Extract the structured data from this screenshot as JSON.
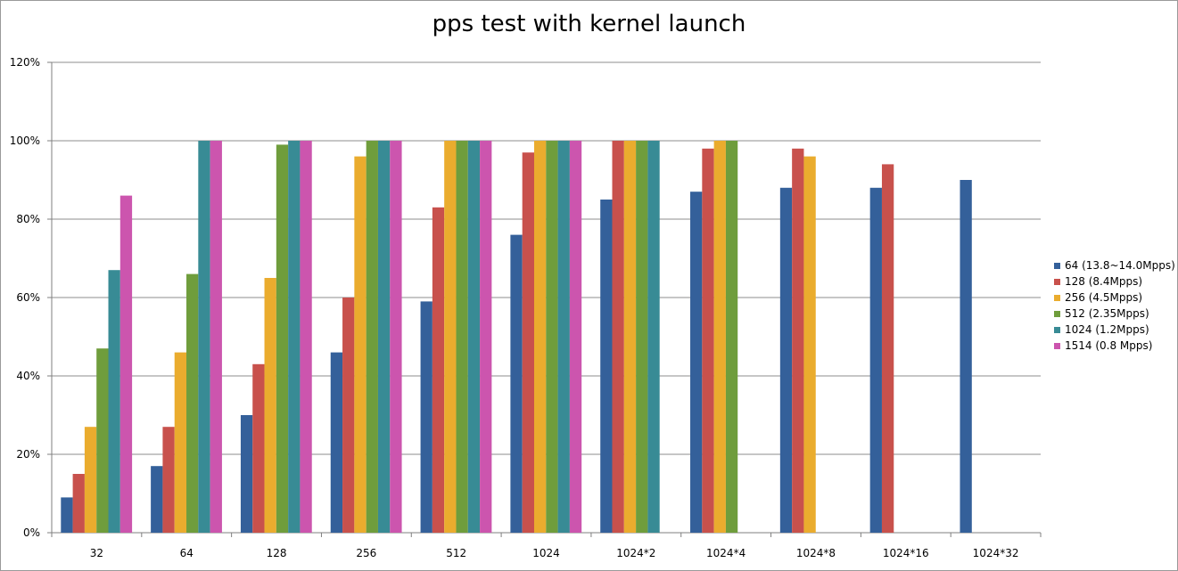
{
  "chart_data": {
    "type": "bar",
    "title": "pps test with kernel launch",
    "xlabel": "",
    "ylabel": "",
    "ylim": [
      0,
      1.2
    ],
    "yticks": [
      "0%",
      "20%",
      "40%",
      "60%",
      "80%",
      "100%",
      "120%"
    ],
    "grid": true,
    "legend_position": "right",
    "categories": [
      "32",
      "64",
      "128",
      "256",
      "512",
      "1024",
      "1024*2",
      "1024*4",
      "1024*8",
      "1024*16",
      "1024*32"
    ],
    "series": [
      {
        "name": "64 (13.8~14.0Mpps)",
        "color": "#34609a",
        "values": [
          0.09,
          0.17,
          0.3,
          0.46,
          0.59,
          0.76,
          0.85,
          0.87,
          0.88,
          0.88,
          0.9
        ]
      },
      {
        "name": "128 (8.4Mpps)",
        "color": "#c8514c",
        "values": [
          0.15,
          0.27,
          0.43,
          0.6,
          0.83,
          0.97,
          1.0,
          0.98,
          0.98,
          0.94,
          null
        ]
      },
      {
        "name": "256 (4.5Mpps)",
        "color": "#eaac2e",
        "values": [
          0.27,
          0.46,
          0.65,
          0.96,
          1.0,
          1.0,
          1.0,
          1.0,
          0.96,
          null,
          null
        ]
      },
      {
        "name": "512 (2.35Mpps)",
        "color": "#6f9d3c",
        "values": [
          0.47,
          0.66,
          0.99,
          1.0,
          1.0,
          1.0,
          1.0,
          1.0,
          null,
          null,
          null
        ]
      },
      {
        "name": "1024 (1.2Mpps)",
        "color": "#388b95",
        "values": [
          0.67,
          1.0,
          1.0,
          1.0,
          1.0,
          1.0,
          1.0,
          null,
          null,
          null,
          null
        ]
      },
      {
        "name": "1514 (0.8 Mpps)",
        "color": "#cc55ae",
        "values": [
          0.86,
          1.0,
          1.0,
          1.0,
          1.0,
          1.0,
          null,
          null,
          null,
          null,
          null
        ]
      }
    ]
  }
}
